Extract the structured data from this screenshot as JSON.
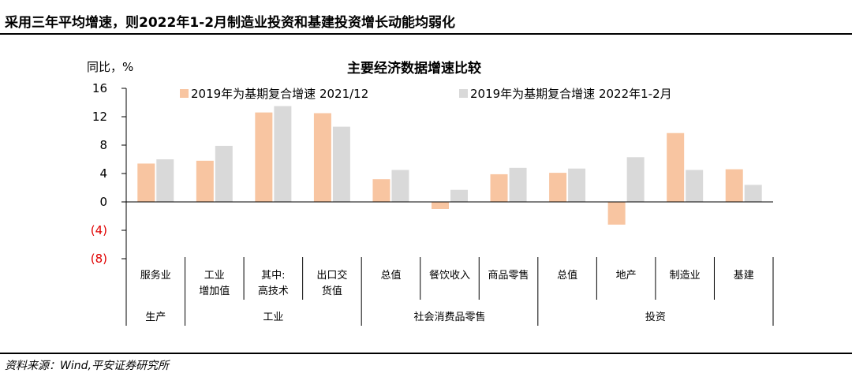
{
  "page": {
    "headline": "采用三年平均增速，则2022年1-2月制造业投资和基建投资增长动能均弱化",
    "source": "资料来源：Wind,平安证券研究所"
  },
  "colors": {
    "series1": "#f8c5a1",
    "series2": "#d9d9d9",
    "negative_tick": "#e00000"
  },
  "chart_data": {
    "type": "bar",
    "title": "主要经济数据增速比较",
    "ylabel": "同比，%",
    "ylim": [
      -8,
      16
    ],
    "yticks": [
      16,
      12,
      8,
      4,
      0,
      -4,
      -8
    ],
    "ytick_labels": [
      "16",
      "12",
      "8",
      "4",
      "0",
      "(4)",
      "(8)"
    ],
    "grid": false,
    "legend_position": "top",
    "categories": [
      [
        "服务业"
      ],
      [
        "工业",
        "增加值"
      ],
      [
        "其中:",
        "高技术"
      ],
      [
        "出口交",
        "货值"
      ],
      [
        "总值"
      ],
      [
        "餐饮收入"
      ],
      [
        "商品零售"
      ],
      [
        "总值"
      ],
      [
        "地产"
      ],
      [
        "制造业"
      ],
      [
        "基建"
      ]
    ],
    "groups": [
      {
        "name": "生产",
        "count": 1
      },
      {
        "name": "工业",
        "count": 3
      },
      {
        "name": "社会消费品零售",
        "count": 3
      },
      {
        "name": "投资",
        "count": 4
      }
    ],
    "series": [
      {
        "name": "2019年为基期复合增速 2021/12",
        "values": [
          5.4,
          5.8,
          12.6,
          12.5,
          3.2,
          -1.0,
          3.9,
          4.1,
          -3.2,
          9.7,
          4.6
        ]
      },
      {
        "name": "2019年为基期复合增速 2022年1-2月",
        "values": [
          6.0,
          7.9,
          13.5,
          10.6,
          4.5,
          1.7,
          4.8,
          4.7,
          6.3,
          4.5,
          2.4
        ]
      }
    ]
  }
}
